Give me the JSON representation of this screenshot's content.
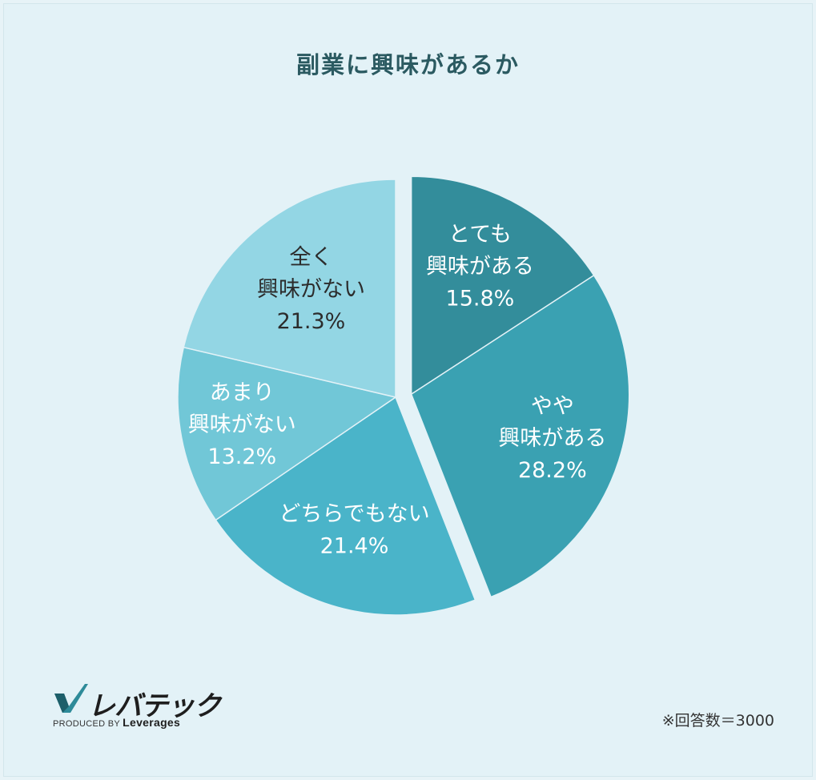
{
  "chart_data": {
    "type": "pie",
    "title": "副業に興味があるか",
    "slices": [
      {
        "lines": [
          "とても",
          "興味がある"
        ],
        "value": 15.8,
        "value_label": "15.8%",
        "color": "#338d9b",
        "exploded": true
      },
      {
        "lines": [
          "やや",
          "興味がある"
        ],
        "value": 28.2,
        "value_label": "28.2%",
        "color": "#3aa1b2",
        "exploded": true
      },
      {
        "lines": [
          "どちらでもない"
        ],
        "value": 21.4,
        "value_label": "21.4%",
        "color": "#4ab4c9",
        "exploded": false
      },
      {
        "lines": [
          "あまり",
          "興味がない"
        ],
        "value": 13.2,
        "value_label": "13.2%",
        "color": "#71c7d7",
        "exploded": false
      },
      {
        "lines": [
          "全く",
          "興味がない"
        ],
        "value": 21.3,
        "value_label": "21.3%",
        "color": "#93d6e4",
        "exploded": false
      }
    ]
  },
  "logo": {
    "name": "レバテック",
    "produced_by": "PRODUCED BY",
    "company": "Leverages"
  },
  "note": "※回答数＝3000"
}
